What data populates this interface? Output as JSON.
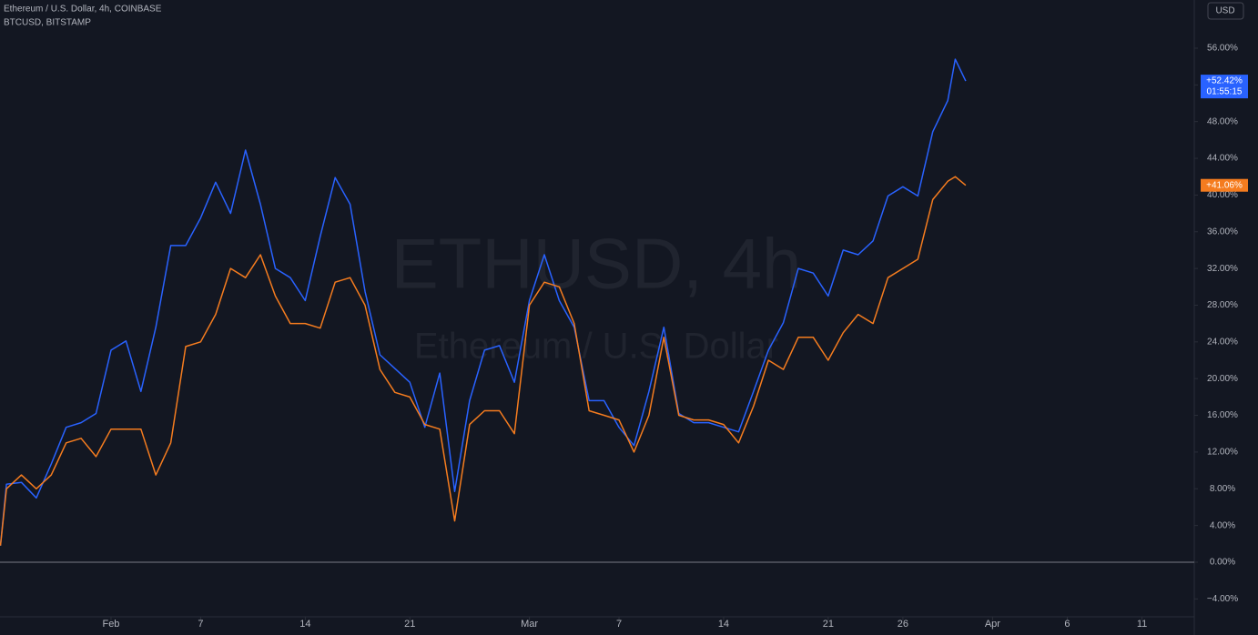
{
  "chart_data": {
    "type": "line",
    "watermark": "ETHUSD, 4h",
    "watermark_subtitle": "Ethereum / U.S. Dollar",
    "currency_button": "USD",
    "x": [
      24.6,
      25,
      26,
      27,
      28,
      29,
      30,
      31,
      32,
      33,
      34,
      35,
      36,
      37,
      38,
      39,
      40,
      41,
      42,
      43,
      44,
      45,
      46,
      47,
      48,
      49,
      50,
      51,
      52,
      53,
      54,
      55,
      56,
      57,
      58,
      59,
      60,
      61,
      62,
      63,
      64,
      65,
      66,
      67,
      68,
      69,
      70,
      71,
      72,
      73,
      74,
      75,
      76,
      77,
      78,
      79,
      80,
      81,
      82,
      83,
      84,
      85,
      86,
      87,
      88,
      88.5,
      89.2
    ],
    "series": [
      {
        "name": "Ethereum / U.S. Dollar, 4h, COINBASE",
        "color": "#2962ff",
        "last_label": "+52.42%",
        "countdown": "01:55:15",
        "values": [
          1.8,
          8.5,
          8.7,
          7,
          10.7,
          14.7,
          15.2,
          16.2,
          23.1,
          24.1,
          18.6,
          25.6,
          34.5,
          34.5,
          37.5,
          41.4,
          38,
          44.9,
          39,
          32,
          31,
          28.5,
          35.5,
          41.9,
          39,
          29.5,
          22.6,
          21.1,
          19.6,
          14.7,
          20.6,
          7.7,
          17.6,
          23.1,
          23.6,
          19.6,
          28.5,
          33.5,
          28.5,
          25.6,
          17.6,
          17.6,
          14.7,
          12.7,
          18.6,
          25.6,
          16.2,
          15.2,
          15.2,
          14.7,
          14.2,
          18.6,
          23.1,
          26.1,
          32,
          31.5,
          29,
          34,
          33.5,
          35,
          39.9,
          40.9,
          39.9,
          46.9,
          50.3,
          54.8,
          52.42
        ]
      },
      {
        "name": "BTCUSD, BITSTAMP",
        "color": "#f57c1f",
        "last_label": "+41.06%",
        "values": [
          1.8,
          8,
          9.5,
          8,
          9.5,
          13,
          13.5,
          11.5,
          14.5,
          14.5,
          14.5,
          9.5,
          13,
          23.5,
          24,
          27,
          32,
          31,
          33.5,
          29,
          26,
          26,
          25.5,
          30.5,
          31,
          28,
          21,
          18.5,
          18,
          15,
          14.5,
          4.5,
          15,
          16.5,
          16.5,
          14,
          28,
          30.5,
          30,
          26,
          16.5,
          16,
          15.5,
          12,
          16,
          24.5,
          16,
          15.5,
          15.5,
          15,
          13,
          17,
          22,
          21,
          24.5,
          24.5,
          22,
          25,
          27,
          26,
          31,
          32,
          33,
          39.5,
          41.5,
          42,
          41.06
        ]
      }
    ],
    "xlim": [
      24.57,
      104.5
    ],
    "xticks": [
      {
        "value": 32,
        "label": "Feb"
      },
      {
        "value": 38,
        "label": "7"
      },
      {
        "value": 45,
        "label": "14"
      },
      {
        "value": 52,
        "label": "21"
      },
      {
        "value": 60,
        "label": "Mar"
      },
      {
        "value": 66,
        "label": "7"
      },
      {
        "value": 73,
        "label": "14"
      },
      {
        "value": 80,
        "label": "21"
      },
      {
        "value": 85,
        "label": "26"
      },
      {
        "value": 91,
        "label": "Apr"
      },
      {
        "value": 96,
        "label": "6"
      },
      {
        "value": 101,
        "label": "11"
      }
    ],
    "ylim": [
      -5.95,
      61.25
    ],
    "yticks": [
      {
        "value": -4,
        "label": "−4.00%"
      },
      {
        "value": 0,
        "label": "0.00%"
      },
      {
        "value": 4,
        "label": "4.00%"
      },
      {
        "value": 8,
        "label": "8.00%"
      },
      {
        "value": 12,
        "label": "12.00%"
      },
      {
        "value": 16,
        "label": "16.00%"
      },
      {
        "value": 20,
        "label": "20.00%"
      },
      {
        "value": 24,
        "label": "24.00%"
      },
      {
        "value": 28,
        "label": "28.00%"
      },
      {
        "value": 32,
        "label": "32.00%"
      },
      {
        "value": 36,
        "label": "36.00%"
      },
      {
        "value": 40,
        "label": "40.00%"
      },
      {
        "value": 44,
        "label": "44.00%"
      },
      {
        "value": 48,
        "label": "48.00%"
      },
      {
        "value": 52,
        "label": "52.00%"
      },
      {
        "value": 56,
        "label": "56.00%"
      }
    ],
    "baseline": 0
  }
}
